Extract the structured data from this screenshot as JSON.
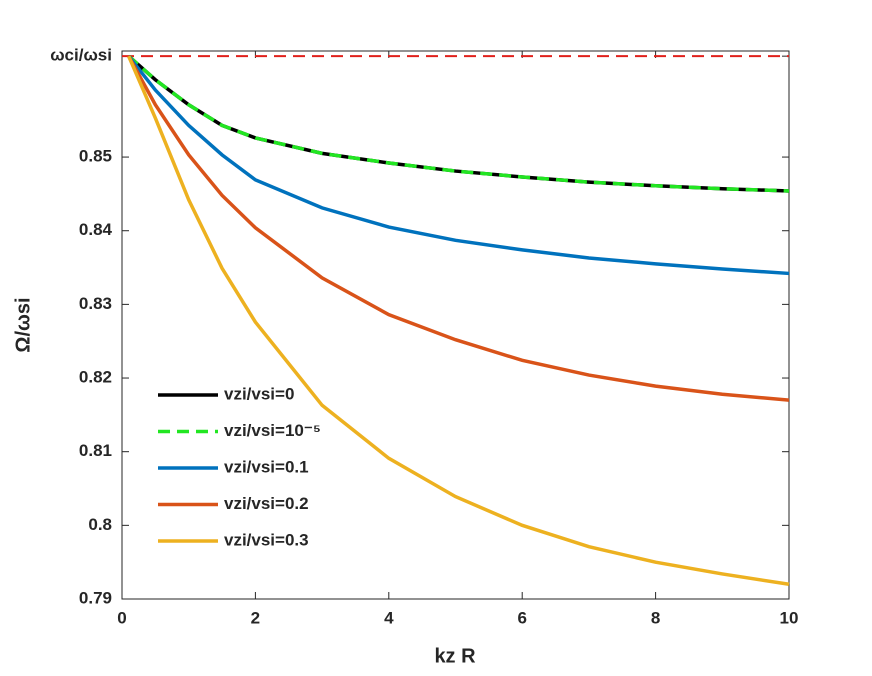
{
  "chart_data": {
    "type": "line",
    "xlabel": "kz R",
    "ylabel": "Ω/ωsi",
    "xlim": [
      0,
      10
    ],
    "xticks": [
      0,
      2,
      4,
      6,
      8,
      10
    ],
    "ylim": [
      0.79,
      0.8644
    ],
    "yticks": [
      0.79,
      0.8,
      0.81,
      0.82,
      0.83,
      0.84,
      0.85,
      {
        "value": 0.8637,
        "label": "ωci/ωsi"
      }
    ],
    "reference_line": {
      "value": 0.8637,
      "color": "#e0201b",
      "style": "dashed"
    },
    "legend": "lower left",
    "grid": false,
    "x": [
      0.1,
      0.5,
      1,
      1.5,
      2,
      3,
      4,
      5,
      6,
      7,
      8,
      9,
      10
    ],
    "series": [
      {
        "name": "vzi/vsi=0",
        "color": "#000000",
        "style": "solid",
        "values": [
          0.8637,
          0.8605,
          0.8571,
          0.8543,
          0.8526,
          0.8505,
          0.8492,
          0.8481,
          0.8473,
          0.8466,
          0.8461,
          0.8457,
          0.8454
        ]
      },
      {
        "name": "vzi/vsi=10⁻⁵",
        "color": "#22e622",
        "style": "dashed",
        "values": [
          0.8637,
          0.8605,
          0.8571,
          0.8543,
          0.8526,
          0.8505,
          0.8492,
          0.8481,
          0.8473,
          0.8466,
          0.8461,
          0.8457,
          0.8454
        ]
      },
      {
        "name": "vzi/vsi=0.1",
        "color": "#0072bd",
        "style": "solid",
        "values": [
          0.8637,
          0.8591,
          0.8543,
          0.8503,
          0.8469,
          0.8431,
          0.8405,
          0.8387,
          0.8374,
          0.8363,
          0.8355,
          0.8348,
          0.8342
        ]
      },
      {
        "name": "vzi/vsi=0.2",
        "color": "#d95319",
        "style": "solid",
        "values": [
          0.8637,
          0.8571,
          0.8503,
          0.8448,
          0.8404,
          0.8336,
          0.8286,
          0.8252,
          0.8224,
          0.8204,
          0.8189,
          0.8178,
          0.817
        ]
      },
      {
        "name": "vzi/vsi=0.3",
        "color": "#edb120",
        "style": "solid",
        "values": [
          0.8637,
          0.8553,
          0.8442,
          0.8349,
          0.8276,
          0.8163,
          0.8091,
          0.8039,
          0.8,
          0.7971,
          0.795,
          0.7934,
          0.792
        ]
      }
    ]
  }
}
